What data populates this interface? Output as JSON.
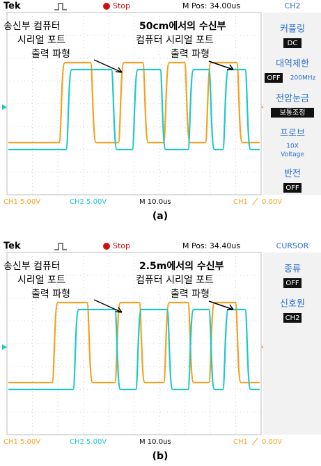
{
  "panels": [
    {
      "label": "(a)",
      "header": {
        "brand": "Tek",
        "state": "Stop",
        "position": "M Pos: 34.00us",
        "menu_title": "CH2"
      },
      "annotations": {
        "left": [
          "송신부 컴퓨터",
          "시리얼 포트",
          "출력 파형"
        ],
        "right": [
          "50cm에서의 수신부",
          "컴퓨터 시리얼 포트",
          "출력 파형"
        ]
      },
      "menu": [
        {
          "title": "커플링",
          "value": "DC"
        },
        {
          "title": "대역제한",
          "value": "OFF",
          "note": [
            "200MHz"
          ]
        },
        {
          "title": "전압눈금",
          "value": "보통조정"
        },
        {
          "title": "프로브",
          "note": [
            "10X",
            "Voltage"
          ]
        },
        {
          "title": "반전",
          "value": "OFF"
        }
      ],
      "footer": {
        "ch1": "CH1 5.00V",
        "ch2": "CH2 5.00V",
        "time": "M 10.0us",
        "trigger_source": "CH1",
        "trigger_level": "0.00V"
      }
    },
    {
      "label": "(b)",
      "header": {
        "brand": "Tek",
        "state": "Stop",
        "position": "M Pos: 34.40us",
        "menu_title": "CURSOR"
      },
      "annotations": {
        "left": [
          "송신부 컴퓨터",
          "시리얼 포트",
          "출력 파형"
        ],
        "right": [
          "2.5m에서의 수신부",
          "컴퓨터 시리얼 포트",
          "출력 파형"
        ]
      },
      "menu": [
        {
          "title": "종류",
          "value": "OFF"
        },
        {
          "title": "신호원",
          "value": "CH2"
        }
      ],
      "footer": {
        "ch1": "CH1 5.00V",
        "ch2": "CH2 5.00V",
        "time": "M 10.0us",
        "trigger_source": "CH1",
        "trigger_level": "0.00V"
      }
    }
  ]
}
